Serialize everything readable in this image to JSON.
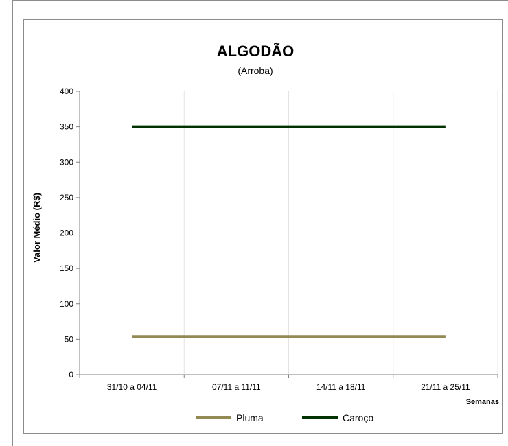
{
  "chart_data": {
    "type": "line",
    "title": "ALGODÃO",
    "subtitle": "(Arroba)",
    "xlabel": "Semanas",
    "ylabel": "Valor Médio (R$)",
    "categories": [
      "31/10 a 04/11",
      "07/11 a 11/11",
      "14/11 a 18/11",
      "21/11 a 25/11"
    ],
    "ylim": [
      0,
      400
    ],
    "yticks": [
      0,
      50,
      100,
      150,
      200,
      250,
      300,
      350,
      400
    ],
    "series": [
      {
        "name": "Pluma",
        "values": [
          54,
          54,
          54,
          54
        ],
        "color": "#938953"
      },
      {
        "name": "Caroço",
        "values": [
          350,
          350,
          350,
          350
        ],
        "color": "#003300"
      }
    ],
    "grid": "vertical",
    "legend": "bottom"
  }
}
